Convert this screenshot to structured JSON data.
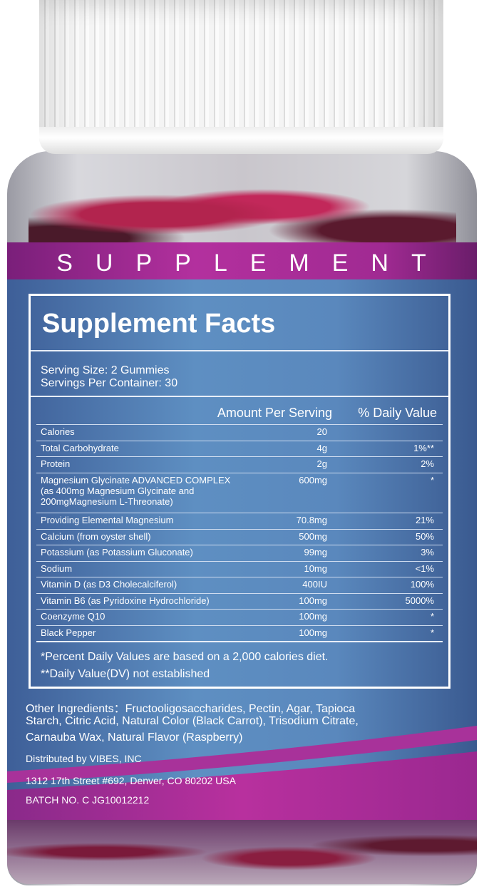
{
  "band": {
    "text": "SUPPLEMENT"
  },
  "facts": {
    "title": "Supplement Facts",
    "serving_size": "Serving Size: 2 Gummies",
    "servings_per_container": "Servings Per Container: 30",
    "col_amount": "Amount Per Serving",
    "col_dv": "% Daily Value",
    "rows": [
      {
        "name": "Calories",
        "amount": "20",
        "dv": ""
      },
      {
        "name": "Total Carbohydrate",
        "amount": "4g",
        "dv": "1%**"
      },
      {
        "name": "Protein",
        "amount": "2g",
        "dv": "2%"
      },
      {
        "name": "Magnesium Glycinate ADVANCED COMPLEX",
        "sub1": "(as 400mg Magnesium Glycinate and",
        "sub2": "200mgMagnesium L-Threonate)",
        "amount": "600mg",
        "dv": "*"
      },
      {
        "name": "Providing Elemental Magnesium",
        "amount": "70.8mg",
        "dv": "21%"
      },
      {
        "name": "Calcium (from oyster shell)",
        "amount": "500mg",
        "dv": "50%"
      },
      {
        "name": "Potassium (as Potassium Gluconate)",
        "amount": "99mg",
        "dv": "3%"
      },
      {
        "name": "Sodium",
        "amount": "10mg",
        "dv": "<1%"
      },
      {
        "name": "Vitamin D (as D3 Cholecalciferol)",
        "amount": "400IU",
        "dv": "100%"
      },
      {
        "name": "Vitamin B6 (as Pyridoxine Hydrochloride)",
        "amount": "100mg",
        "dv": "5000%"
      },
      {
        "name": "Coenzyme Q10",
        "amount": "100mg",
        "dv": "*"
      },
      {
        "name": "Black Pepper",
        "amount": "100mg",
        "dv": "*"
      }
    ],
    "footnote1": "*Percent Daily Values are based on a 2,000 calories diet.",
    "footnote2": "**Daily Value(DV) not established"
  },
  "other": {
    "line1": "Other Ingredients：Fructooligosaccharides, Pectin, Agar, Tapioca",
    "line2": "Starch, Citric Acid, Natural Color (Black Carrot), Trisodium Citrate,",
    "line3": "Carnauba Wax, Natural Flavor (Raspberry)",
    "distributor": "Distributed by VIBES, INC",
    "address": "1312 17th Street #692, Denver, CO 80202 USA",
    "batch": "BATCH NO. C JG10012212"
  },
  "colors": {
    "label_blue": "#5a88bd",
    "band_magenta": "#b3309e",
    "text": "#ffffff"
  }
}
